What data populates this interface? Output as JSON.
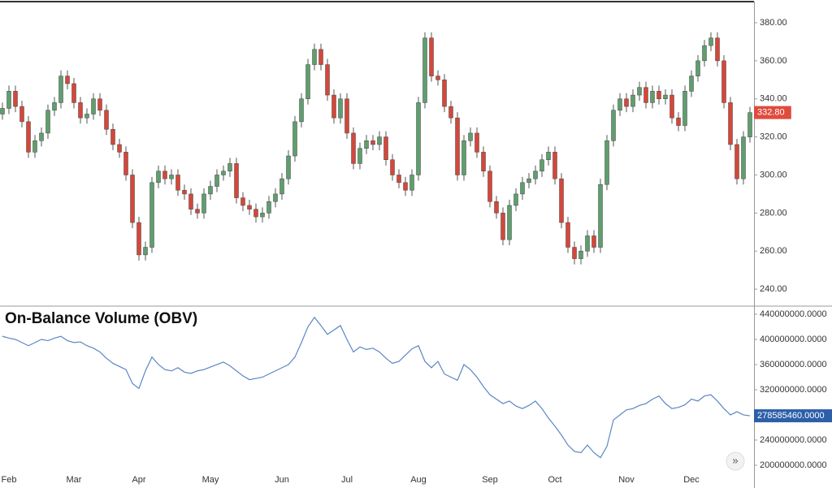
{
  "chart_data": [
    {
      "type": "candlestick",
      "categories": [
        null,
        "Feb",
        null,
        null,
        null,
        null,
        null,
        null,
        null,
        null,
        null,
        "Mar",
        null,
        null,
        null,
        null,
        null,
        null,
        null,
        null,
        null,
        "Apr",
        null,
        null,
        null,
        null,
        null,
        null,
        null,
        null,
        null,
        null,
        "May",
        null,
        null,
        null,
        null,
        null,
        null,
        null,
        null,
        null,
        null,
        "Jun",
        null,
        null,
        null,
        null,
        null,
        null,
        null,
        null,
        null,
        "Jul",
        null,
        null,
        null,
        null,
        null,
        null,
        null,
        null,
        null,
        null,
        "Aug",
        null,
        null,
        null,
        null,
        null,
        null,
        null,
        null,
        null,
        null,
        "Sep",
        null,
        null,
        null,
        null,
        null,
        null,
        null,
        null,
        null,
        "Oct",
        null,
        null,
        null,
        null,
        null,
        null,
        null,
        null,
        null,
        null,
        "Nov",
        null,
        null,
        null,
        null,
        null,
        null,
        null,
        null,
        null,
        "Dec",
        null,
        null,
        null,
        null,
        null,
        null,
        null,
        null,
        null
      ],
      "open": [
        332,
        335,
        344,
        336,
        328,
        312,
        318,
        322,
        334,
        338,
        352,
        348,
        338,
        330,
        332,
        340,
        334,
        324,
        316,
        312,
        300,
        275,
        258,
        262,
        296,
        302,
        298,
        300,
        292,
        290,
        282,
        280,
        290,
        294,
        300,
        302,
        306,
        288,
        284,
        282,
        278,
        280,
        286,
        290,
        298,
        310,
        328,
        340,
        358,
        366,
        358,
        342,
        330,
        340,
        322,
        306,
        314,
        318,
        316,
        320,
        308,
        300,
        296,
        292,
        300,
        338,
        372,
        352,
        350,
        336,
        330,
        300,
        318,
        322,
        312,
        302,
        286,
        280,
        266,
        284,
        290,
        296,
        298,
        302,
        308,
        312,
        298,
        275,
        262,
        256,
        260,
        268,
        262,
        295,
        318,
        334,
        340,
        336,
        342,
        346,
        338,
        344,
        340,
        342,
        330,
        326,
        344,
        352,
        360,
        368,
        372,
        360,
        338,
        316,
        298,
        320
      ],
      "high": [
        338,
        347,
        347,
        339,
        331,
        321,
        325,
        337,
        341,
        355,
        355,
        351,
        341,
        335,
        343,
        343,
        337,
        327,
        319,
        315,
        303,
        278,
        265,
        299,
        305,
        305,
        303,
        303,
        295,
        293,
        285,
        293,
        297,
        303,
        305,
        309,
        309,
        291,
        287,
        285,
        283,
        289,
        293,
        301,
        313,
        331,
        343,
        361,
        369,
        369,
        361,
        345,
        343,
        343,
        325,
        317,
        321,
        321,
        323,
        323,
        311,
        303,
        299,
        303,
        341,
        375,
        375,
        355,
        353,
        339,
        333,
        321,
        325,
        325,
        315,
        305,
        289,
        283,
        287,
        293,
        299,
        301,
        305,
        311,
        315,
        315,
        301,
        278,
        265,
        263,
        271,
        271,
        298,
        321,
        337,
        343,
        343,
        345,
        349,
        349,
        347,
        347,
        345,
        345,
        333,
        347,
        355,
        363,
        371,
        375,
        375,
        363,
        341,
        319,
        323,
        335.8
      ],
      "low": [
        329,
        332,
        333,
        325,
        309,
        309,
        315,
        319,
        331,
        335,
        345,
        335,
        327,
        327,
        329,
        331,
        321,
        313,
        309,
        297,
        272,
        255,
        255,
        259,
        293,
        295,
        295,
        289,
        287,
        279,
        277,
        277,
        287,
        291,
        297,
        299,
        285,
        281,
        279,
        275,
        275,
        277,
        283,
        287,
        295,
        307,
        325,
        337,
        355,
        355,
        339,
        327,
        327,
        319,
        303,
        303,
        311,
        313,
        313,
        305,
        297,
        293,
        289,
        289,
        297,
        335,
        349,
        347,
        333,
        327,
        297,
        297,
        315,
        309,
        299,
        283,
        277,
        263,
        263,
        281,
        287,
        293,
        295,
        299,
        305,
        295,
        272,
        259,
        253,
        253,
        257,
        259,
        259,
        292,
        315,
        331,
        333,
        333,
        339,
        335,
        335,
        337,
        337,
        327,
        323,
        323,
        341,
        349,
        357,
        365,
        357,
        335,
        313,
        295,
        295,
        317
      ],
      "close": [
        335,
        344,
        336,
        328,
        312,
        318,
        322,
        334,
        338,
        352,
        348,
        338,
        330,
        332,
        340,
        334,
        324,
        316,
        312,
        300,
        275,
        258,
        262,
        296,
        302,
        298,
        300,
        292,
        290,
        282,
        280,
        290,
        294,
        300,
        302,
        306,
        288,
        284,
        282,
        278,
        280,
        286,
        290,
        298,
        310,
        328,
        340,
        358,
        366,
        358,
        342,
        330,
        340,
        322,
        306,
        314,
        318,
        316,
        320,
        308,
        300,
        296,
        292,
        300,
        338,
        372,
        352,
        350,
        336,
        330,
        300,
        318,
        322,
        312,
        302,
        286,
        280,
        266,
        284,
        290,
        296,
        298,
        302,
        308,
        312,
        298,
        275,
        262,
        256,
        260,
        268,
        262,
        295,
        318,
        334,
        340,
        336,
        342,
        346,
        338,
        344,
        340,
        342,
        330,
        326,
        344,
        352,
        360,
        368,
        372,
        360,
        338,
        316,
        298,
        320,
        332.8
      ],
      "up_color": "#5f9e6e",
      "down_color": "#d4473a",
      "ylim": [
        231.5,
        391.1
      ],
      "yticks": [
        {
          "value": 240,
          "label": "240.00"
        },
        {
          "value": 260,
          "label": "260.00"
        },
        {
          "value": 280,
          "label": "280.00"
        },
        {
          "value": 300,
          "label": "300.00"
        },
        {
          "value": 320,
          "label": "320.00"
        },
        {
          "value": 340,
          "label": "340.00"
        },
        {
          "value": 360,
          "label": "360.00"
        },
        {
          "value": 380,
          "label": "380.00"
        }
      ],
      "annotations": [
        {
          "value": 332.8,
          "label": "332.80",
          "color": "#e04b3f"
        }
      ]
    },
    {
      "type": "line",
      "title": "On-Balance Volume (OBV)",
      "series": [
        {
          "name": "OBV",
          "color": "#5b86c4",
          "values": [
            405000000,
            402000000,
            400000000,
            395000000,
            390000000,
            395000000,
            400000000,
            398000000,
            402000000,
            405000000,
            398000000,
            395000000,
            396000000,
            390000000,
            386000000,
            380000000,
            370000000,
            362000000,
            357000000,
            352000000,
            330000000,
            322000000,
            350000000,
            372000000,
            360000000,
            352000000,
            350000000,
            355000000,
            348000000,
            346000000,
            350000000,
            352000000,
            356000000,
            360000000,
            364000000,
            358000000,
            350000000,
            342000000,
            336000000,
            338000000,
            340000000,
            345000000,
            350000000,
            355000000,
            360000000,
            372000000,
            395000000,
            420000000,
            435000000,
            422000000,
            408000000,
            415000000,
            422000000,
            400000000,
            380000000,
            388000000,
            384000000,
            386000000,
            380000000,
            370000000,
            362000000,
            365000000,
            375000000,
            385000000,
            390000000,
            365000000,
            355000000,
            365000000,
            345000000,
            340000000,
            335000000,
            360000000,
            352000000,
            340000000,
            325000000,
            312000000,
            305000000,
            298000000,
            302000000,
            294000000,
            290000000,
            295000000,
            302000000,
            290000000,
            275000000,
            262000000,
            248000000,
            232000000,
            222000000,
            220000000,
            232000000,
            220000000,
            212000000,
            230000000,
            272000000,
            280000000,
            288000000,
            290000000,
            295000000,
            298000000,
            305000000,
            310000000,
            298000000,
            290000000,
            292000000,
            296000000,
            305000000,
            302000000,
            310000000,
            312000000,
            302000000,
            290000000,
            280000000,
            285000000,
            280000000,
            278585460
          ]
        }
      ],
      "ylim": [
        178000000,
        452900000
      ],
      "yticks": [
        {
          "value": 200000000,
          "label": "200000000.0000"
        },
        {
          "value": 240000000,
          "label": "240000000.0000"
        },
        {
          "value": 280000000,
          "label": "280000000.0000"
        },
        {
          "value": 320000000,
          "label": "320000000.0000"
        },
        {
          "value": 360000000,
          "label": "360000000.0000"
        },
        {
          "value": 400000000,
          "label": "400000000.0000"
        },
        {
          "value": 440000000,
          "label": "440000000.0000"
        }
      ],
      "annotations": [
        {
          "value": 278585460,
          "label": "278585460.0000",
          "color": "#2d5fa8"
        }
      ]
    }
  ]
}
